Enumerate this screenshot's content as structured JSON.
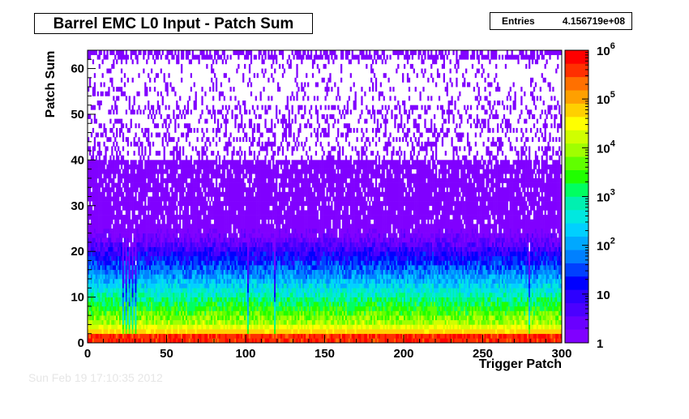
{
  "chart_data": {
    "type": "heatmap",
    "title": "Barrel EMC L0 Input - Patch Sum",
    "xlabel": "Trigger Patch",
    "ylabel": "Patch Sum",
    "xlim": [
      0,
      300
    ],
    "ylim": [
      0,
      64
    ],
    "x_ticks": [
      0,
      50,
      100,
      150,
      200,
      250,
      300
    ],
    "y_ticks": [
      0,
      10,
      20,
      30,
      40,
      50,
      60
    ],
    "z_scale": "log",
    "z_range": [
      1,
      1000000
    ],
    "z_tick_labels": [
      {
        "base": "1",
        "exp": ""
      },
      {
        "base": "10",
        "exp": ""
      },
      {
        "base": "10",
        "exp": "2"
      },
      {
        "base": "10",
        "exp": "3"
      },
      {
        "base": "10",
        "exp": "4"
      },
      {
        "base": "10",
        "exp": "5"
      },
      {
        "base": "10",
        "exp": "6"
      }
    ],
    "stats": {
      "label": "Entries",
      "value": "4.156719e+08"
    },
    "palette": [
      "#8000ff",
      "#6a00ff",
      "#4b00ff",
      "#2d00ff",
      "#0000ff",
      "#0040ff",
      "#0080ff",
      "#00a8ff",
      "#00d0ff",
      "#00e8e0",
      "#00f0b0",
      "#00ff60",
      "#20ff00",
      "#60ff00",
      "#a0ff00",
      "#d0ff00",
      "#ffff00",
      "#ffd000",
      "#ffa000",
      "#ff7000",
      "#ff3000",
      "#ff0000"
    ],
    "grid": false,
    "legend": "color-scale-right"
  },
  "watermark": "Sun Feb 19 17:10:35 2012"
}
